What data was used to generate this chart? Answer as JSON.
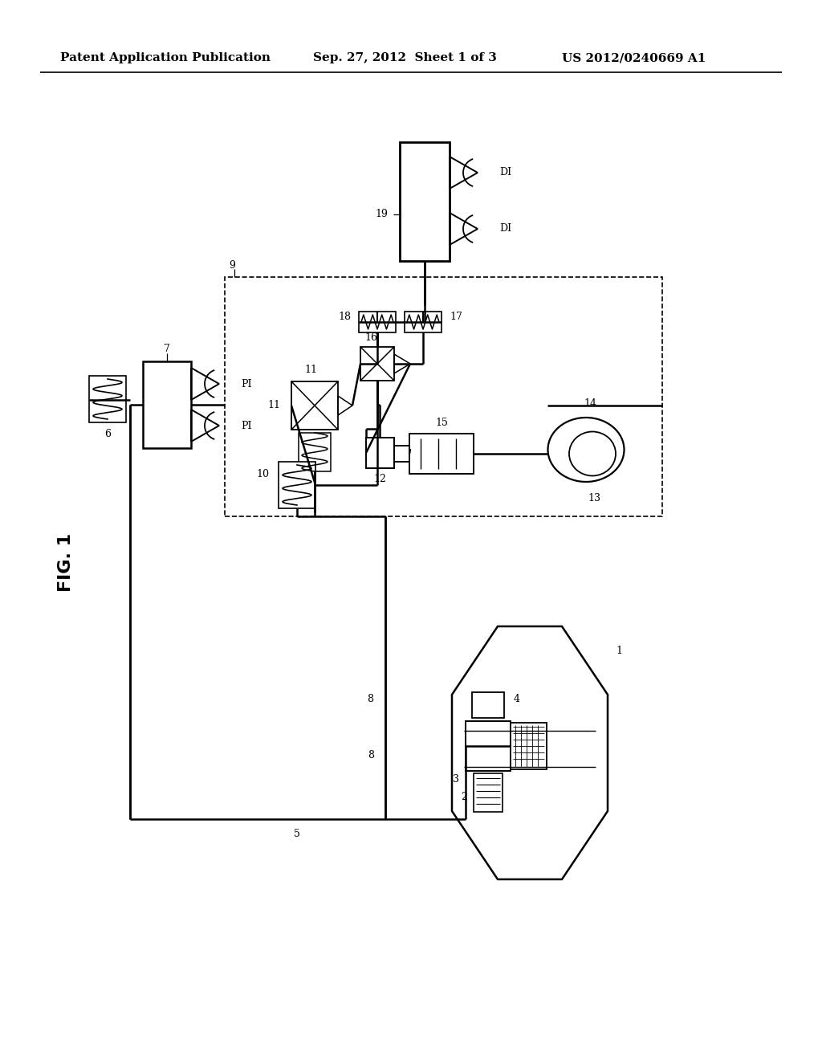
{
  "bg_color": "#ffffff",
  "header_left": "Patent Application Publication",
  "header_center": "Sep. 27, 2012  Sheet 1 of 3",
  "header_right": "US 2012/0240669 A1",
  "header_fontsize": 11,
  "fig_label": "FIG. 1"
}
